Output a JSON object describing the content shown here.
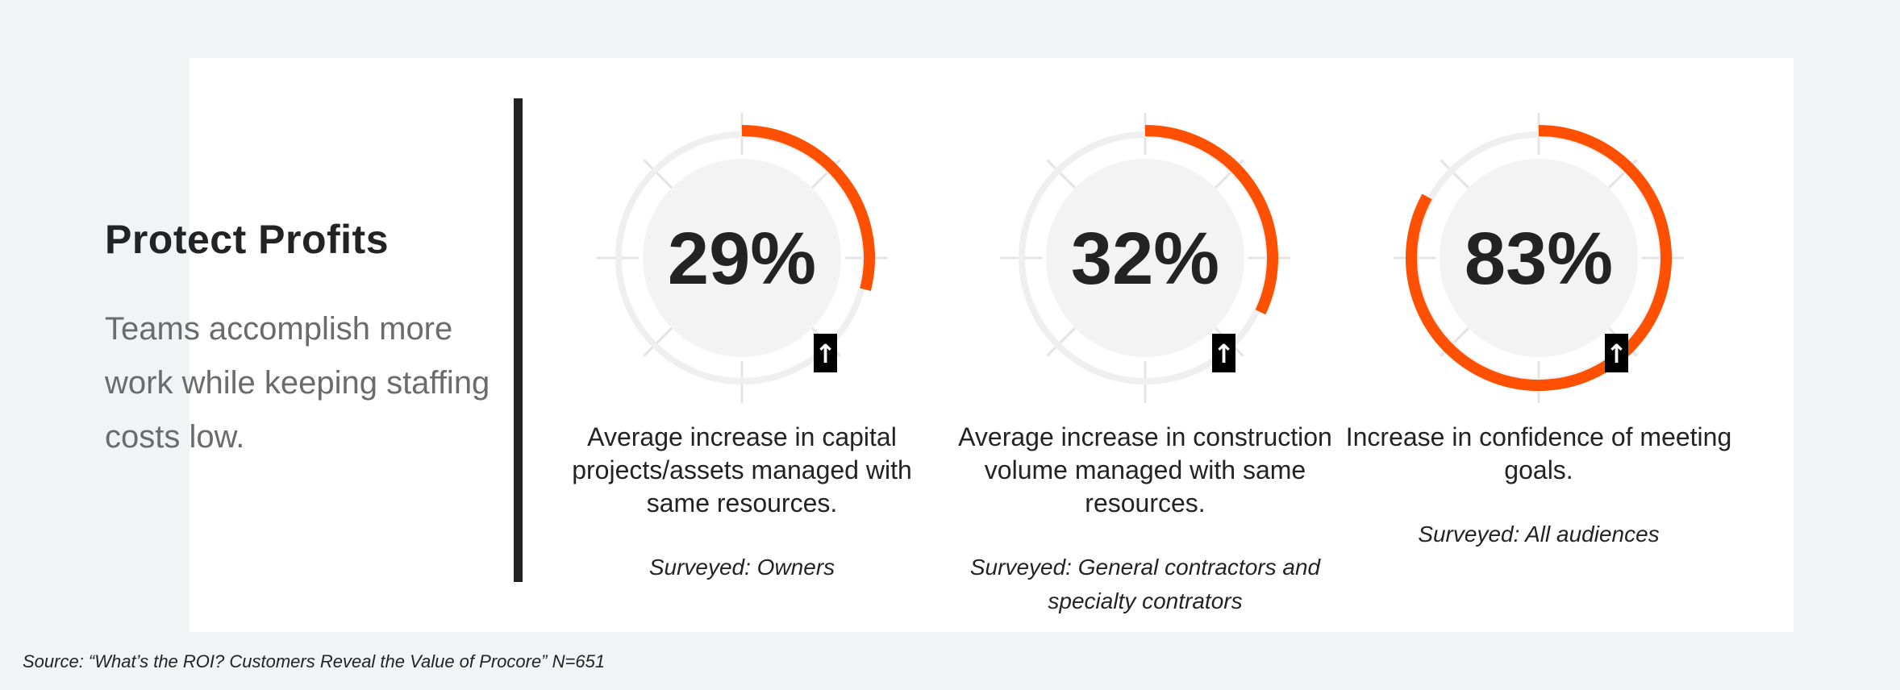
{
  "section": {
    "title": "Protect Profits",
    "subtitle": "Teams accomplish more work while keeping staffing costs low."
  },
  "colors": {
    "accent": "#fe5000",
    "dark": "#232323",
    "track": "#efefef",
    "inner": "#f3f3f4",
    "muted": "#6b6b6b"
  },
  "chart_data": {
    "type": "radial-progress",
    "metrics": [
      {
        "value": 29,
        "label": "29%",
        "trend": "↑",
        "description": "Average increase in capital projects/assets managed with same resources.",
        "surveyed": "Surveyed: Owners"
      },
      {
        "value": 32,
        "label": "32%",
        "trend": "↑",
        "description": "Average increase in construction volume managed with same resources.",
        "surveyed": "Surveyed: General contractors and specialty contrators"
      },
      {
        "value": 83,
        "label": "83%",
        "trend": "↑",
        "description": "Increase in confidence of meeting goals.",
        "surveyed": "Surveyed: All audiences"
      }
    ]
  },
  "source": "Source: “What’s the ROI? Customers Reveal the Value of Procore” N=651"
}
